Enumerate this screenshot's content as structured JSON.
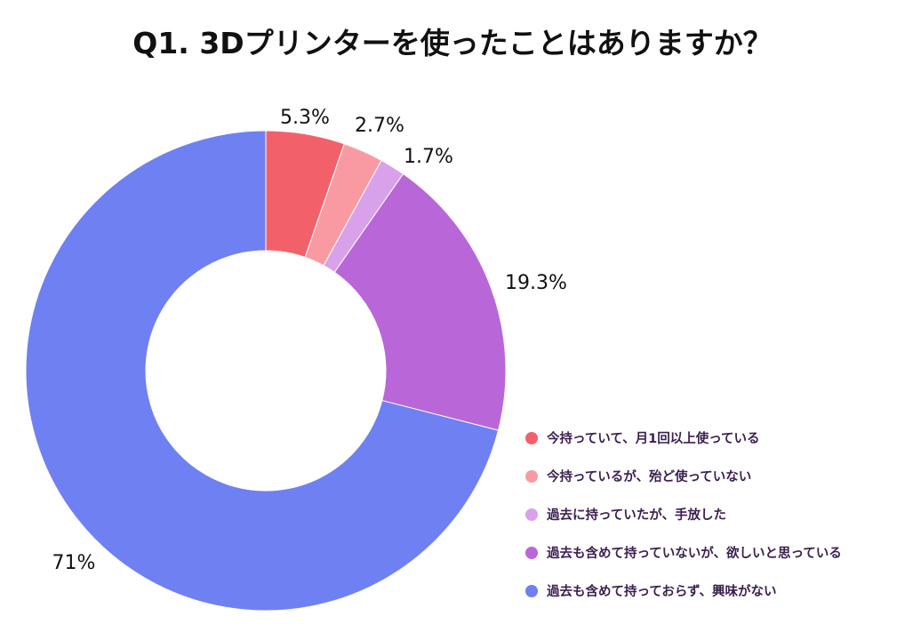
{
  "chart_data": {
    "type": "pie",
    "title": "Q1. 3Dプリンターを使ったことはありますか？",
    "categories": [
      "今持っていて、月1回以上使っている",
      "今持っているが、殆ど使っていない",
      "過去に持っていたが、手放した",
      "過去も含めて持っていないが、欲しいと思っている",
      "過去も含めて持っておらず、興味がない"
    ],
    "values": [
      5.3,
      2.7,
      1.7,
      19.3,
      71
    ],
    "value_labels": [
      "5.3%",
      "2.7%",
      "1.7%",
      "19.3%",
      "71%"
    ],
    "colors": [
      "#f2616a",
      "#f99aa3",
      "#d9a1ea",
      "#b967d8",
      "#6f80f2"
    ],
    "donut": true,
    "legend_position": "bottom-right",
    "legend_text_color": "#3c2050"
  }
}
